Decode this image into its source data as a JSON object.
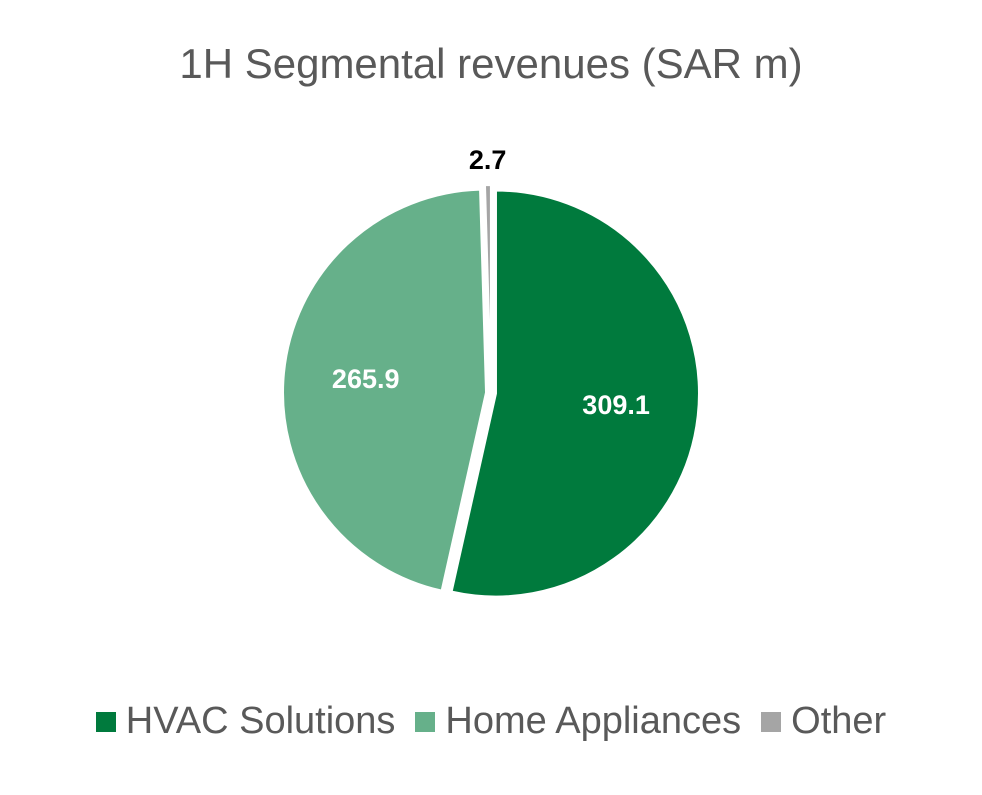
{
  "chart_data": {
    "type": "pie",
    "title": "1H Segmental revenues (SAR m)",
    "legend_position": "bottom",
    "slices": [
      {
        "name": "HVAC Solutions",
        "value": 309.1,
        "label": "309.1",
        "color": "#007A3D",
        "label_color": "#ffffff"
      },
      {
        "name": "Home Appliances",
        "value": 265.9,
        "label": "265.9",
        "color": "#66B08A",
        "label_color": "#ffffff"
      },
      {
        "name": "Other",
        "value": 2.7,
        "label": "2.7",
        "color": "#A5A5A5",
        "label_color": "#000000"
      }
    ]
  }
}
